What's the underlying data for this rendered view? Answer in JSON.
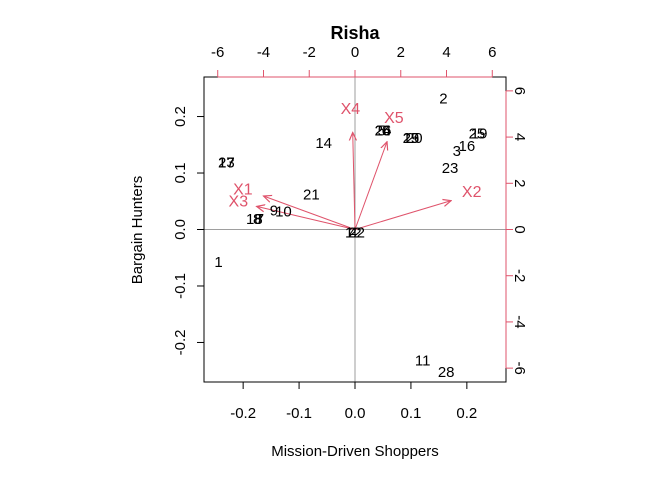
{
  "chart_data": {
    "type": "scatter",
    "subtype": "biplot",
    "title": "Risha",
    "xlabel": "Mission-Driven Shoppers",
    "ylabel": "Bargain Hunters",
    "xlim": [
      -0.27,
      0.27
    ],
    "ylim": [
      -0.27,
      0.27
    ],
    "x_ticks": [
      "-0.2",
      "-0.1",
      "0.0",
      "0.1",
      "0.2"
    ],
    "y_ticks": [
      "-0.2",
      "-0.1",
      "0.0",
      "0.1",
      "0.2"
    ],
    "loadings_lim": [
      -6.6,
      6.6
    ],
    "top_ticks": [
      "-6",
      "-4",
      "-2",
      "0",
      "2",
      "4",
      "6"
    ],
    "right_ticks": [
      "-6",
      "-4",
      "-2",
      "0",
      "2",
      "4",
      "6"
    ],
    "scores": [
      {
        "label": "1",
        "x": -0.244,
        "y": -0.058
      },
      {
        "label": "2",
        "x": 0.158,
        "y": 0.231
      },
      {
        "label": "3",
        "x": 0.182,
        "y": 0.138
      },
      {
        "label": "4",
        "x": -0.003,
        "y": -0.006
      },
      {
        "label": "5",
        "x": 0.048,
        "y": 0.174
      },
      {
        "label": "6",
        "x": 0.055,
        "y": 0.174
      },
      {
        "label": "7",
        "x": -0.17,
        "y": 0.018
      },
      {
        "label": "8",
        "x": -0.175,
        "y": 0.018
      },
      {
        "label": "9",
        "x": -0.145,
        "y": 0.033
      },
      {
        "label": "10",
        "x": -0.128,
        "y": 0.031
      },
      {
        "label": "11",
        "x": 0.121,
        "y": -0.233
      },
      {
        "label": "12",
        "x": -0.003,
        "y": -0.006
      },
      {
        "label": "13",
        "x": -0.23,
        "y": 0.118
      },
      {
        "label": "14",
        "x": -0.056,
        "y": 0.152
      },
      {
        "label": "15",
        "x": 0.1,
        "y": 0.161
      },
      {
        "label": "16",
        "x": 0.2,
        "y": 0.147
      },
      {
        "label": "17",
        "x": -0.23,
        "y": 0.118
      },
      {
        "label": "18",
        "x": -0.18,
        "y": 0.018
      },
      {
        "label": "19",
        "x": 0.222,
        "y": 0.169
      },
      {
        "label": "20",
        "x": 0.106,
        "y": 0.161
      },
      {
        "label": "21",
        "x": -0.078,
        "y": 0.061
      },
      {
        "label": "22",
        "x": 0.003,
        "y": -0.006
      },
      {
        "label": "23",
        "x": 0.17,
        "y": 0.108
      },
      {
        "label": "24",
        "x": 0.05,
        "y": 0.174
      },
      {
        "label": "25",
        "x": 0.218,
        "y": 0.169
      },
      {
        "label": "26",
        "x": 0.05,
        "y": 0.174
      },
      {
        "label": "27",
        "x": -0.23,
        "y": 0.118
      },
      {
        "label": "28",
        "x": 0.163,
        "y": -0.253
      },
      {
        "label": "29",
        "x": 0.1,
        "y": 0.161
      }
    ],
    "loadings": [
      {
        "label": "X1",
        "x": -4.0,
        "y": 1.45,
        "label_x": -4.9,
        "label_y": 1.7
      },
      {
        "label": "X2",
        "x": 4.2,
        "y": 1.25,
        "label_x": 5.1,
        "label_y": 1.6
      },
      {
        "label": "X3",
        "x": -4.3,
        "y": 1.0,
        "label_x": -5.1,
        "label_y": 1.2
      },
      {
        "label": "X4",
        "x": -0.1,
        "y": 4.2,
        "label_x": -0.2,
        "label_y": 5.2
      },
      {
        "label": "X5",
        "x": 1.4,
        "y": 3.8,
        "label_x": 1.7,
        "label_y": 4.8
      }
    ]
  },
  "colors": {
    "arrow": "#DF536B",
    "reference_line": "#9E9E9E"
  }
}
